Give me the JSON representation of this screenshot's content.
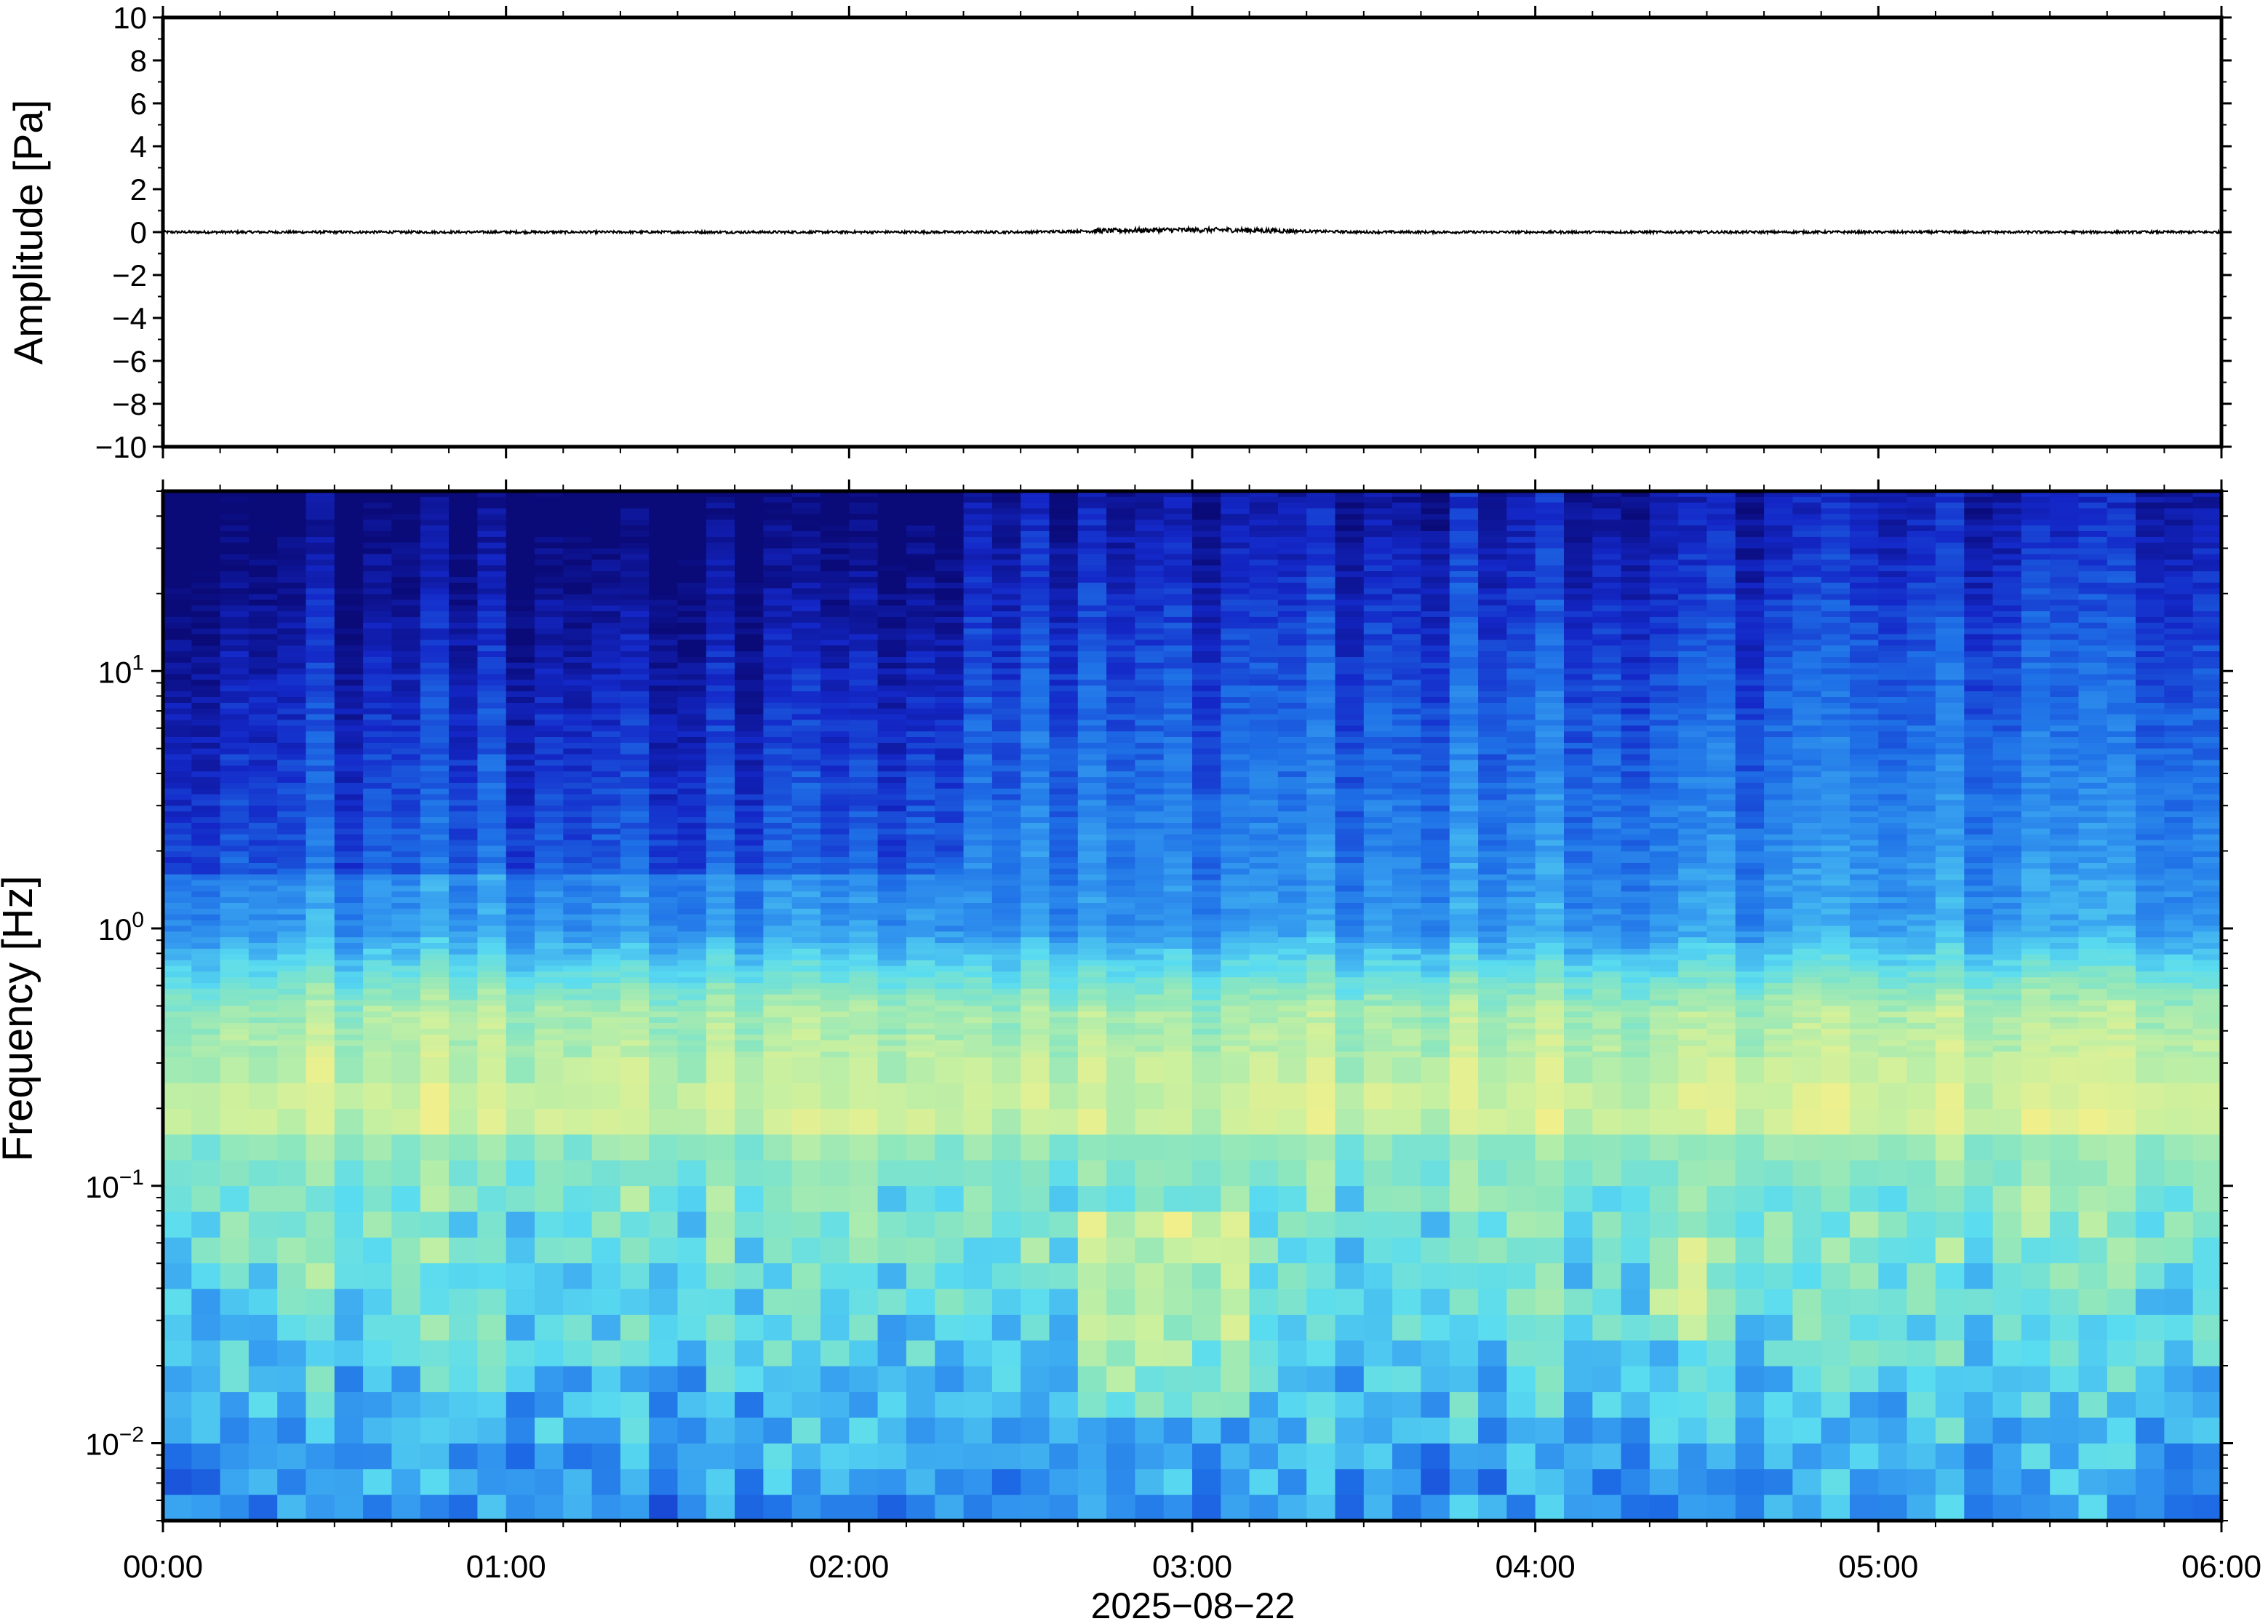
{
  "chart_data": [
    {
      "type": "line",
      "title": "",
      "xlabel": "",
      "ylabel": "Amplitude [Pa]",
      "ylim": [
        -10,
        10
      ],
      "y_ticks": [
        10,
        8,
        6,
        4,
        2,
        0,
        -2,
        -4,
        -6,
        -8,
        -10
      ],
      "y_tick_labels": [
        "10",
        "8",
        "6",
        "4",
        "2",
        "0",
        "−2",
        "−4",
        "−6",
        "−8",
        "−10"
      ],
      "xlim_hours": [
        0,
        6
      ],
      "series": [
        {
          "x_hours": [
            0,
            0.5,
            1,
            1.5,
            2,
            2.5,
            2.9,
            3.1,
            3.5,
            4,
            4.5,
            5,
            5.5,
            6
          ],
          "values": [
            0,
            0,
            0,
            0,
            0,
            0,
            0.1,
            0.1,
            0,
            0,
            0,
            0,
            0,
            0
          ]
        }
      ],
      "color": "#000000",
      "grid": false
    },
    {
      "type": "heatmap",
      "title": "",
      "xlabel": "2025−08−22",
      "ylabel": "Frequency [Hz]",
      "y_scale": "log",
      "ylim_hz": [
        0.005,
        50
      ],
      "y_ticks_hz": [
        0.01,
        0.1,
        1,
        10
      ],
      "y_tick_labels": [
        {
          "base": "10",
          "exp": "−2"
        },
        {
          "base": "10",
          "exp": "−1"
        },
        {
          "base": "10",
          "exp": "0"
        },
        {
          "base": "10",
          "exp": "1"
        }
      ],
      "xlim_hours": [
        0,
        6
      ],
      "x_tick_labels": [
        "00:00",
        "01:00",
        "02:00",
        "03:00",
        "04:00",
        "05:00",
        "06:00"
      ],
      "colormap": [
        "#0a0a78",
        "#1428c8",
        "#1e6ee6",
        "#37a0f0",
        "#5adcf0",
        "#8ce6be",
        "#c8f0a0",
        "#f0f08c",
        "#f5d278",
        "#f5b464"
      ],
      "grid": false
    }
  ]
}
